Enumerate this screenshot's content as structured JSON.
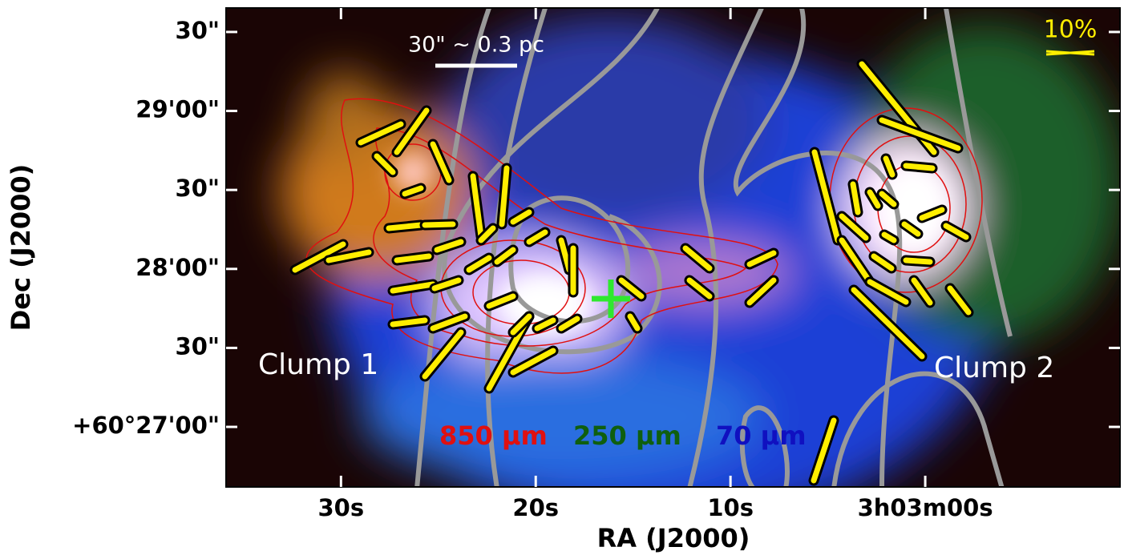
{
  "chart_data": {
    "type": "image",
    "xlabel": "RA (J2000)",
    "ylabel": "Dec (J2000)",
    "xlim": [
      35.9,
      -10.0
    ],
    "ylim": [
      -22.8,
      159.1
    ],
    "xticks": [
      {
        "value": 30,
        "label": "30s"
      },
      {
        "value": 20,
        "label": "20s"
      },
      {
        "value": 10,
        "label": "10s"
      },
      {
        "value": 0,
        "label": "3h03m00s"
      }
    ],
    "yticks": [
      {
        "value": 150,
        "label": "30\""
      },
      {
        "value": 120,
        "label": "29'00\""
      },
      {
        "value": 90,
        "label": "30\""
      },
      {
        "value": 60,
        "label": "28'00\""
      },
      {
        "value": 30,
        "label": "30\""
      },
      {
        "value": 0,
        "label": "+60°27'00\""
      }
    ],
    "annotations": {
      "scale_bar": "30\" ~ 0.3 pc",
      "vector_scale": "10%",
      "clump1": "Clump 1",
      "clump2": "Clump 2",
      "band_red": "850 μm",
      "band_green": "250 μm",
      "band_blue": "70 μm"
    }
  }
}
